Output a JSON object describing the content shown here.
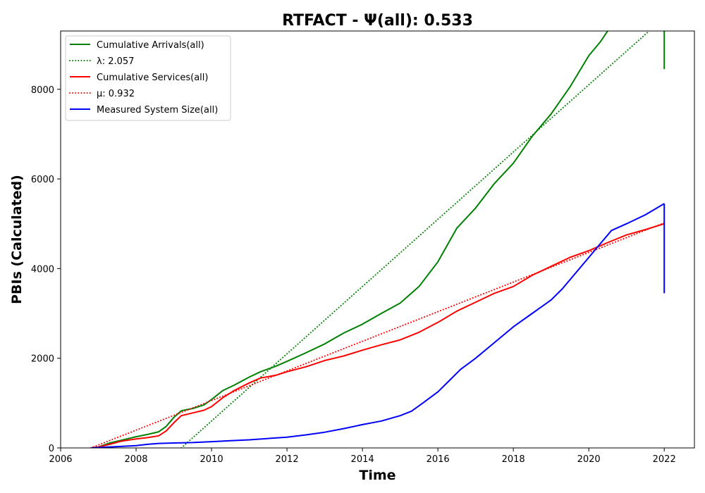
{
  "chart_data": {
    "type": "line",
    "title": "RTFACT -  Ψ(all): 0.533",
    "xlabel": "Time",
    "ylabel": "PBIs (Calculated)",
    "xlim": [
      2006.0,
      2022.8
    ],
    "ylim": [
      0,
      9300
    ],
    "xticks": [
      2006,
      2008,
      2010,
      2012,
      2014,
      2016,
      2018,
      2020,
      2022
    ],
    "yticks": [
      0,
      2000,
      4000,
      6000,
      8000
    ],
    "legend_position": "upper left",
    "series": [
      {
        "name": "Cumulative Arrivals(all)",
        "color": "#008000",
        "style": "solid",
        "x": [
          2006.8,
          2007.0,
          2007.3,
          2007.6,
          2008.0,
          2008.3,
          2008.6,
          2008.8,
          2009.0,
          2009.2,
          2009.5,
          2009.8,
          2010.0,
          2010.3,
          2010.6,
          2011.0,
          2011.3,
          2011.7,
          2012.0,
          2012.5,
          2013.0,
          2013.5,
          2014.0,
          2014.5,
          2015.0,
          2015.5,
          2016.0,
          2016.5,
          2017.0,
          2017.5,
          2018.0,
          2018.5,
          2019.0,
          2019.5,
          2020.0,
          2020.3,
          2020.5
        ],
        "values": [
          0,
          20,
          110,
          170,
          250,
          300,
          360,
          480,
          680,
          830,
          880,
          960,
          1080,
          1280,
          1400,
          1580,
          1700,
          1820,
          1930,
          2120,
          2320,
          2560,
          2760,
          3000,
          3230,
          3600,
          4150,
          4900,
          5350,
          5900,
          6350,
          6950,
          7450,
          8050,
          8750,
          9050,
          9300
        ]
      },
      {
        "name": "λ: 2.057",
        "color": "#008000",
        "style": "dotted",
        "x": [
          2009.2,
          2021.6
        ],
        "values": [
          0,
          9300
        ]
      },
      {
        "name": "Cumulative Services(all)",
        "color": "#ff0000",
        "style": "solid",
        "x": [
          2006.8,
          2007.0,
          2007.3,
          2007.6,
          2008.0,
          2008.3,
          2008.6,
          2008.8,
          2009.0,
          2009.2,
          2009.5,
          2009.8,
          2010.0,
          2010.3,
          2010.6,
          2011.0,
          2011.3,
          2011.7,
          2012.0,
          2012.5,
          2013.0,
          2013.5,
          2014.0,
          2014.5,
          2015.0,
          2015.5,
          2016.0,
          2016.5,
          2017.0,
          2017.5,
          2018.0,
          2018.5,
          2019.0,
          2019.5,
          2020.0,
          2020.5,
          2021.0,
          2021.5,
          2022.0
        ],
        "values": [
          0,
          20,
          80,
          150,
          200,
          230,
          270,
          380,
          560,
          720,
          780,
          840,
          920,
          1120,
          1280,
          1450,
          1560,
          1620,
          1700,
          1810,
          1950,
          2050,
          2180,
          2300,
          2410,
          2580,
          2800,
          3050,
          3250,
          3450,
          3600,
          3850,
          4050,
          4250,
          4400,
          4580,
          4750,
          4870,
          5000
        ]
      },
      {
        "name": "μ: 0.932",
        "color": "#ff0000",
        "style": "dotted",
        "x": [
          2006.8,
          2022.0
        ],
        "values": [
          0,
          5020
        ]
      },
      {
        "name": "Measured System Size(all)",
        "color": "#0000ff",
        "style": "solid",
        "x": [
          2006.8,
          2007.0,
          2007.5,
          2008.0,
          2008.3,
          2008.6,
          2009.0,
          2009.5,
          2010.0,
          2010.5,
          2011.0,
          2011.5,
          2012.0,
          2012.5,
          2013.0,
          2013.5,
          2014.0,
          2014.5,
          2015.0,
          2015.3,
          2015.6,
          2016.0,
          2016.3,
          2016.6,
          2017.0,
          2017.5,
          2018.0,
          2018.5,
          2019.0,
          2019.3,
          2019.6,
          2020.0,
          2020.3,
          2020.6,
          2021.0,
          2021.5,
          2022.0
        ],
        "values": [
          0,
          10,
          30,
          50,
          80,
          100,
          110,
          120,
          140,
          160,
          180,
          210,
          240,
          290,
          350,
          430,
          520,
          600,
          720,
          820,
          1000,
          1250,
          1500,
          1750,
          2000,
          2350,
          2700,
          3000,
          3300,
          3550,
          3850,
          4250,
          4550,
          4850,
          5000,
          5200,
          5450
        ]
      }
    ],
    "end_drops": [
      {
        "series": "Cumulative Arrivals(all)",
        "x": 2022.0,
        "from": 9300,
        "to": 8450
      },
      {
        "series": "Measured System Size(all)",
        "x": 2022.0,
        "from": 5450,
        "to": 3450
      }
    ]
  }
}
